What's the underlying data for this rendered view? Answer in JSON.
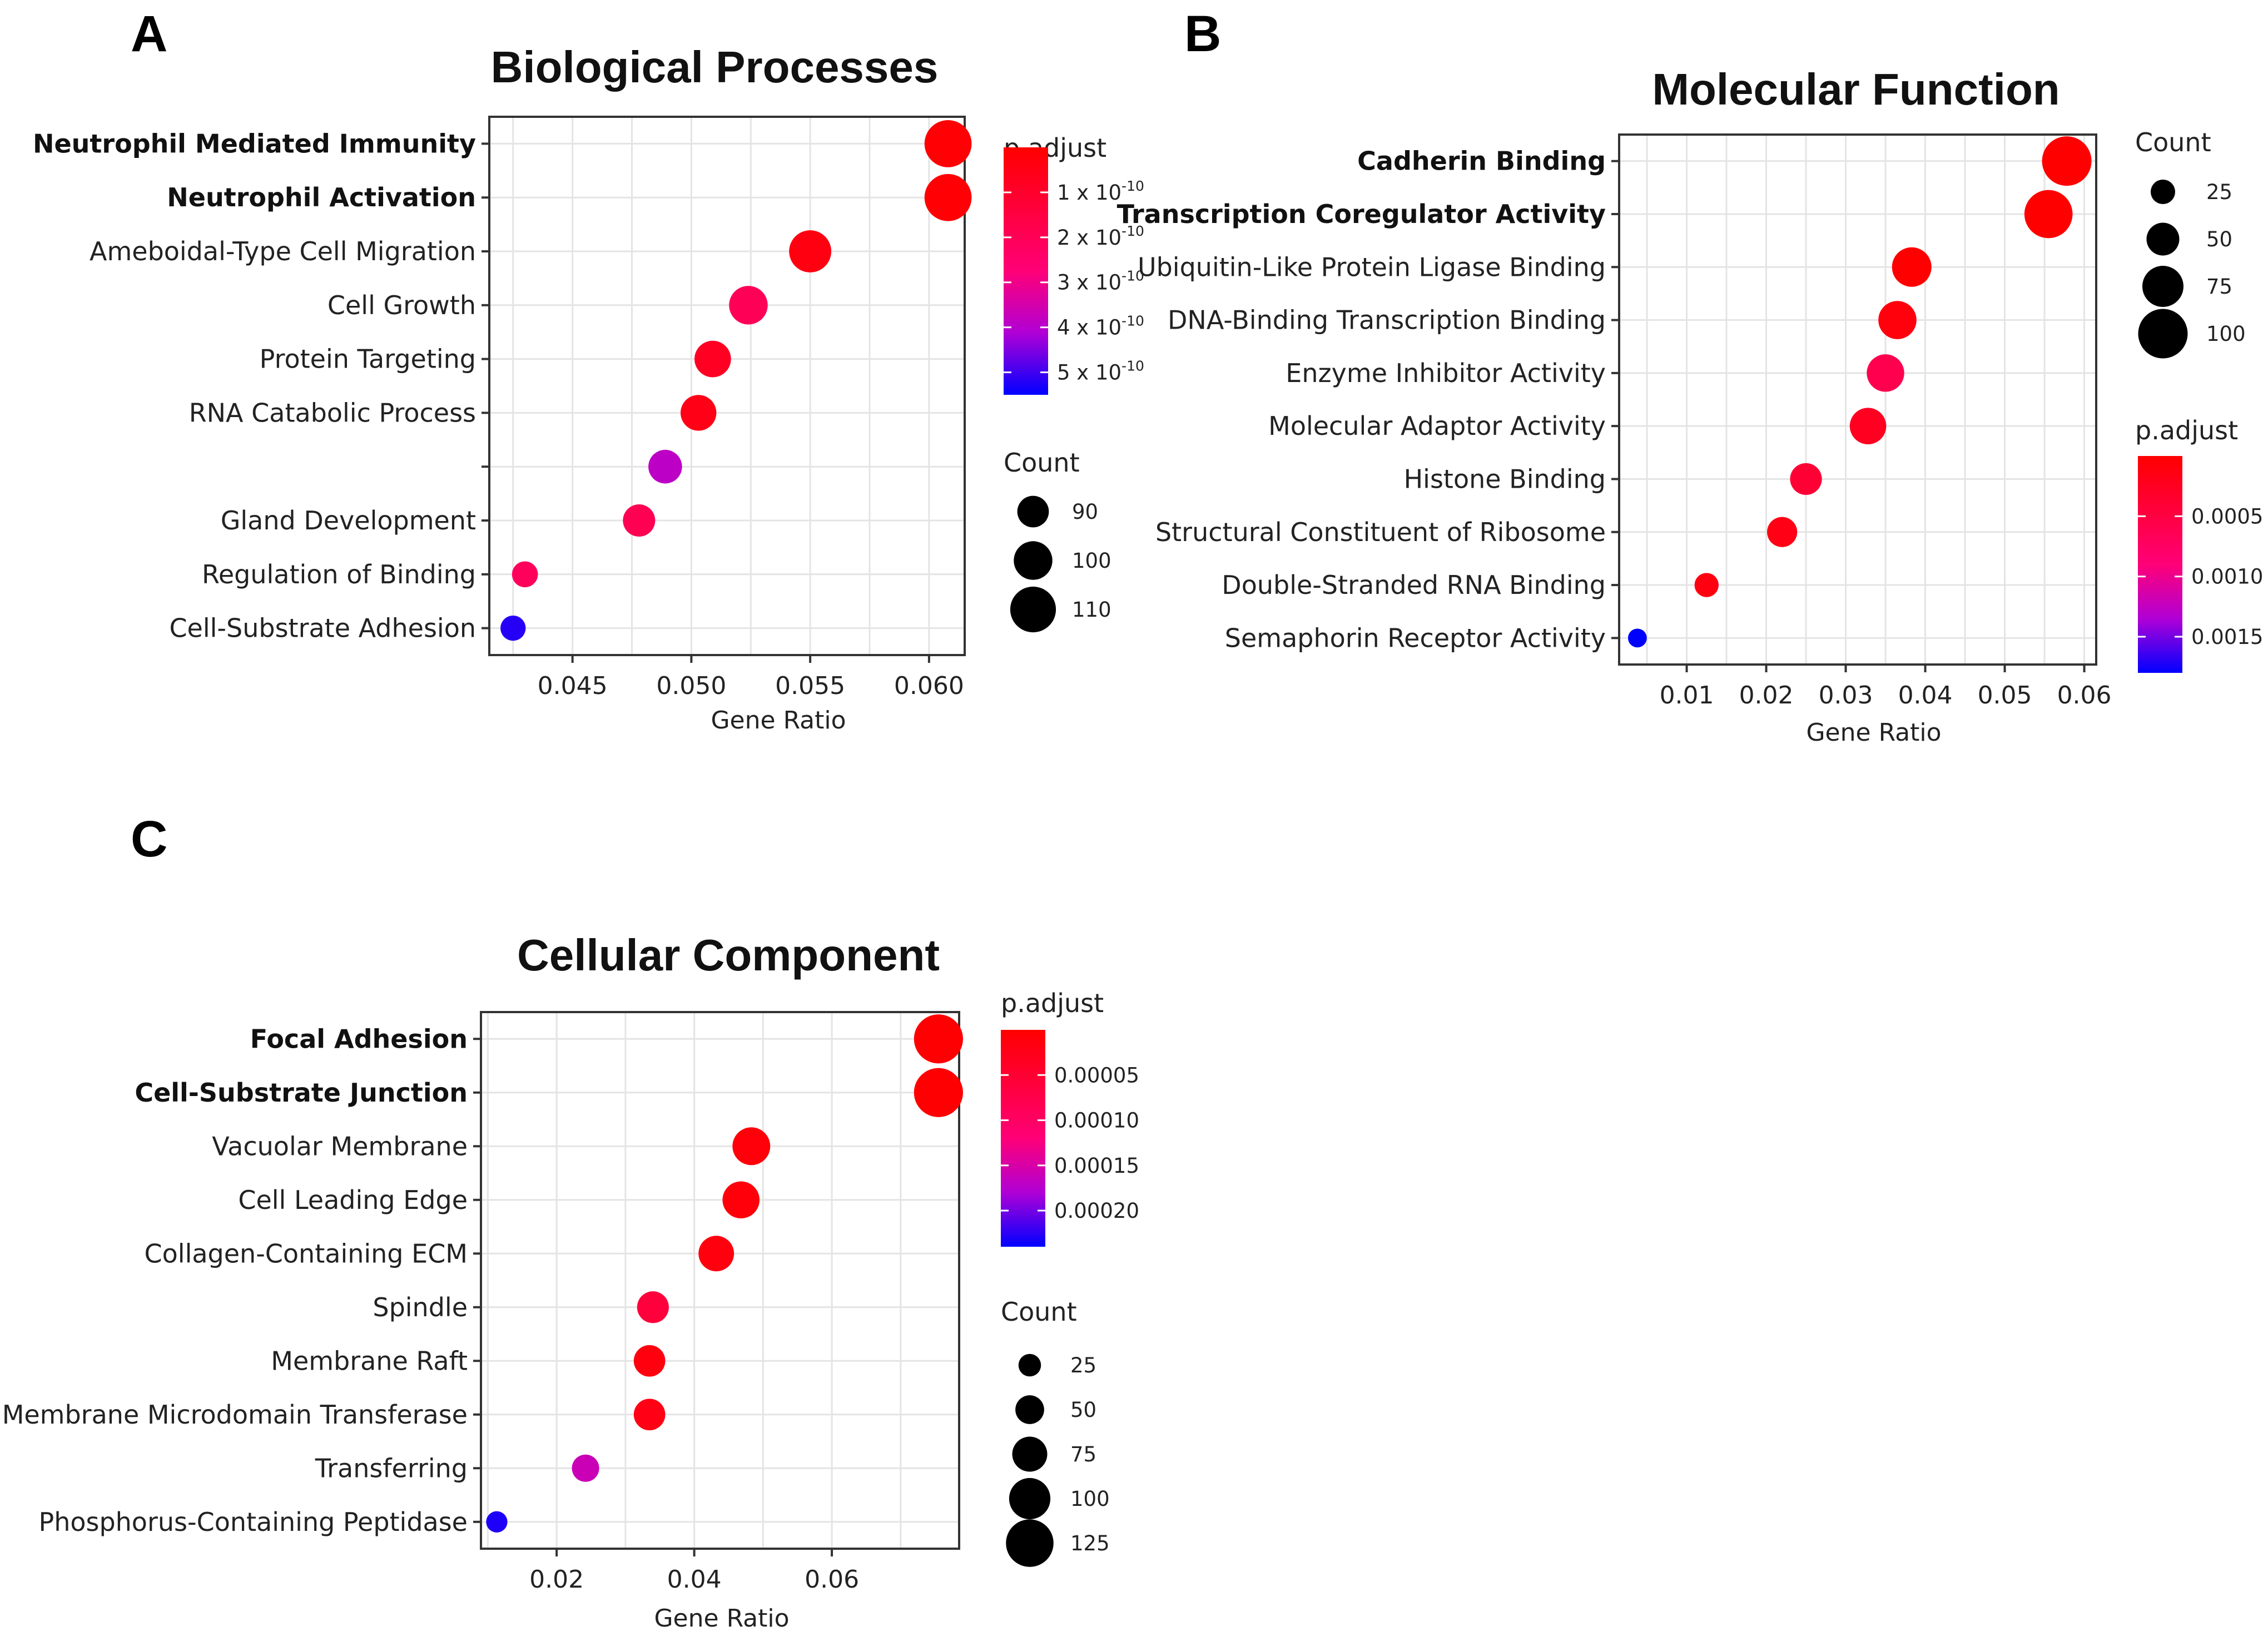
{
  "colors": {
    "low": "#ff0000",
    "mid": "#cc0099",
    "high": "#0000ff"
  },
  "chart_data": [
    {
      "id": "bp",
      "type": "scatter",
      "panel_label": "A",
      "title": "Biological Processes",
      "xlabel": "Gene Ratio",
      "ylabel": "",
      "xlim": [
        0.0415,
        0.0615
      ],
      "xticks": [
        0.045,
        0.05,
        0.055,
        0.06
      ],
      "xtick_labels": [
        "0.045",
        "0.050",
        "0.055",
        "0.060"
      ],
      "grid": true,
      "categories": [
        {
          "label": "Neutrophil Mediated Immunity",
          "bold": true,
          "x": 0.0608,
          "count": 112,
          "padj": 1e-11
        },
        {
          "label": "Neutrophil Activation",
          "bold": true,
          "x": 0.0608,
          "count": 112,
          "padj": 1e-11
        },
        {
          "label": "Ameboidal-Type Cell Migration",
          "bold": false,
          "x": 0.055,
          "count": 105,
          "padj": 4e-11
        },
        {
          "label": "Cell Growth",
          "bold": false,
          "x": 0.0524,
          "count": 100,
          "padj": 2e-10
        },
        {
          "label": "Protein Targeting",
          "bold": false,
          "x": 0.0509,
          "count": 97,
          "padj": 8e-11
        },
        {
          "label": "RNA Catabolic Process",
          "bold": false,
          "x": 0.0503,
          "count": 96,
          "padj": 5e-11
        },
        {
          "label": "",
          "bold": false,
          "x": 0.0489,
          "count": 93,
          "padj": 3.9e-10
        },
        {
          "label": "Gland Development",
          "bold": false,
          "x": 0.0478,
          "count": 91,
          "padj": 1.9e-10
        },
        {
          "label": "Regulation of Binding",
          "bold": false,
          "x": 0.043,
          "count": 82,
          "padj": 2.1e-10
        },
        {
          "label": "Cell-Substrate Adhesion",
          "bold": false,
          "x": 0.0425,
          "count": 81,
          "padj": 5.2e-10
        }
      ],
      "color_legend": {
        "title": "p.adjust",
        "min": 0,
        "max": 5.5e-10,
        "ticks": [
          {
            "value": 1e-10,
            "prefix": "1 x 10",
            "sup": "-10"
          },
          {
            "value": 2e-10,
            "prefix": "2 x 10",
            "sup": "-10"
          },
          {
            "value": 3e-10,
            "prefix": "3 x 10",
            "sup": "-10"
          },
          {
            "value": 4e-10,
            "prefix": "4 x 10",
            "sup": "-10"
          },
          {
            "value": 5e-10,
            "prefix": "5 x 10",
            "sup": "-10"
          }
        ]
      },
      "size_legend": {
        "title": "Count",
        "values": [
          90,
          100,
          110
        ],
        "labels": [
          "90",
          "100",
          "110"
        ]
      },
      "size_domain": [
        80,
        113
      ],
      "legend_order": "color-first"
    },
    {
      "id": "mf",
      "type": "scatter",
      "panel_label": "B",
      "title": "Molecular Function",
      "xlabel": "Gene Ratio",
      "ylabel": "",
      "xlim": [
        0.0015,
        0.0615
      ],
      "xticks": [
        0.01,
        0.02,
        0.03,
        0.04,
        0.05,
        0.06
      ],
      "xtick_labels": [
        "0.01",
        "0.02",
        "0.03",
        "0.04",
        "0.05",
        "0.06"
      ],
      "grid": true,
      "categories": [
        {
          "label": "Cadherin Binding",
          "bold": true,
          "x": 0.0578,
          "count": 100,
          "padj": 1e-06
        },
        {
          "label": "Transcription Coregulator Activity",
          "bold": true,
          "x": 0.0555,
          "count": 96,
          "padj": 2e-06
        },
        {
          "label": "Ubiquitin-Like Protein Ligase Binding",
          "bold": false,
          "x": 0.0383,
          "count": 70,
          "padj": 1e-05
        },
        {
          "label": "DNA-Binding Transcription Binding",
          "bold": false,
          "x": 0.0365,
          "count": 66,
          "padj": 0.0001
        },
        {
          "label": "Enzyme Inhibitor Activity",
          "bold": false,
          "x": 0.035,
          "count": 64,
          "padj": 0.0006
        },
        {
          "label": "Molecular Adaptor Activity",
          "bold": false,
          "x": 0.0328,
          "count": 61,
          "padj": 0.00025
        },
        {
          "label": "Histone Binding",
          "bold": false,
          "x": 0.025,
          "count": 47,
          "padj": 0.0004
        },
        {
          "label": "Structural Constituent of Ribosome",
          "bold": false,
          "x": 0.022,
          "count": 42,
          "padj": 0.00015
        },
        {
          "label": "Double-Stranded RNA Binding",
          "bold": false,
          "x": 0.0125,
          "count": 24,
          "padj": 0.00012
        },
        {
          "label": "Semaphorin Receptor Activity",
          "bold": false,
          "x": 0.0038,
          "count": 8,
          "padj": 0.0019
        }
      ],
      "color_legend": {
        "title": "p.adjust",
        "min": 0,
        "max": 0.0018,
        "ticks": [
          {
            "value": 0.0005,
            "prefix": "0.0005",
            "sup": ""
          },
          {
            "value": 0.001,
            "prefix": "0.0010",
            "sup": ""
          },
          {
            "value": 0.0015,
            "prefix": "0.0015",
            "sup": ""
          }
        ]
      },
      "size_legend": {
        "title": "Count",
        "values": [
          25,
          50,
          75,
          100
        ],
        "labels": [
          "25",
          "50",
          "75",
          "100"
        ]
      },
      "size_domain": [
        5,
        105
      ],
      "legend_order": "size-first"
    },
    {
      "id": "cc",
      "type": "scatter",
      "panel_label": "C",
      "title": "Cellular Component",
      "xlabel": "Gene Ratio",
      "ylabel": "",
      "xlim": [
        0.009,
        0.0785
      ],
      "xticks": [
        0.02,
        0.04,
        0.06
      ],
      "xtick_labels": [
        "0.02",
        "0.04",
        "0.06"
      ],
      "grid": true,
      "categories": [
        {
          "label": "Focal Adhesion",
          "bold": true,
          "x": 0.0755,
          "count": 131,
          "padj": 2e-06
        },
        {
          "label": "Cell-Substrate Junction",
          "bold": true,
          "x": 0.0755,
          "count": 131,
          "padj": 2e-06
        },
        {
          "label": "Vacuolar Membrane",
          "bold": false,
          "x": 0.0483,
          "count": 86,
          "padj": 1e-05
        },
        {
          "label": "Cell Leading Edge",
          "bold": false,
          "x": 0.0468,
          "count": 83,
          "padj": 1e-05
        },
        {
          "label": "Collagen-Containing ECM",
          "bold": false,
          "x": 0.0432,
          "count": 77,
          "padj": 1.5e-05
        },
        {
          "label": "Spindle",
          "bold": false,
          "x": 0.034,
          "count": 62,
          "padj": 6e-05
        },
        {
          "label": "Membrane Raft",
          "bold": false,
          "x": 0.0335,
          "count": 61,
          "padj": 1.5e-05
        },
        {
          "label": "Membrane Microdomain Transferase",
          "bold": false,
          "x": 0.0335,
          "count": 61,
          "padj": 2e-05
        },
        {
          "label": "Transferring",
          "bold": false,
          "x": 0.0242,
          "count": 44,
          "padj": 0.00016
        },
        {
          "label": "Phosphorus-Containing Peptidase",
          "bold": false,
          "x": 0.0113,
          "count": 20,
          "padj": 0.00023
        }
      ],
      "color_legend": {
        "title": "p.adjust",
        "min": 0,
        "max": 0.00024,
        "ticks": [
          {
            "value": 5e-05,
            "prefix": "0.00005",
            "sup": ""
          },
          {
            "value": 0.0001,
            "prefix": "0.00010",
            "sup": ""
          },
          {
            "value": 0.00015,
            "prefix": "0.00015",
            "sup": ""
          },
          {
            "value": 0.0002,
            "prefix": "0.00020",
            "sup": ""
          }
        ]
      },
      "size_legend": {
        "title": "Count",
        "values": [
          25,
          50,
          75,
          100,
          125
        ],
        "labels": [
          "25",
          "50",
          "75",
          "100",
          "125"
        ]
      },
      "size_domain": [
        15,
        135
      ],
      "legend_order": "color-first"
    }
  ]
}
